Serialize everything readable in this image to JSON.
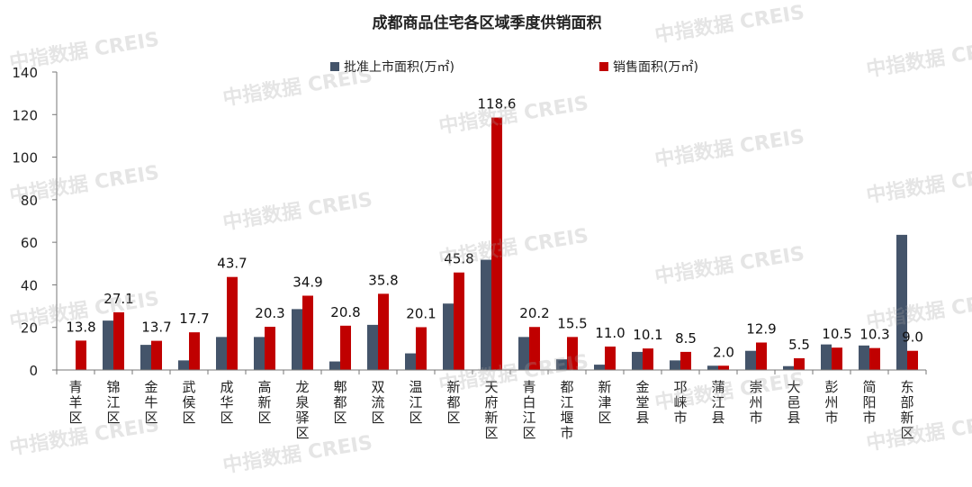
{
  "watermark": "中指数据 CREIS",
  "chart_data": {
    "type": "bar",
    "title": "成都商品住宅各区域季度供销面积",
    "xlabel": "",
    "ylabel": "",
    "ylim": [
      0,
      140
    ],
    "yticks": [
      0,
      20,
      40,
      60,
      80,
      100,
      120,
      140
    ],
    "grid": false,
    "legend_position": "top",
    "categories": [
      "青羊区",
      "锦江区",
      "金牛区",
      "武侯区",
      "成华区",
      "高新区",
      "龙泉驿区",
      "郫都区",
      "双流区",
      "温江区",
      "新都区",
      "天府新区",
      "青白江区",
      "都江堰市",
      "新津区",
      "金堂县",
      "邛崃市",
      "蒲江县",
      "崇州市",
      "大邑县",
      "彭州市",
      "简阳市",
      "东部新区"
    ],
    "series": [
      {
        "name": "批准上市面积(万㎡)",
        "color": "#44546a",
        "values": [
          0,
          23.2,
          11.8,
          4.5,
          15.5,
          15.5,
          28.6,
          4.0,
          21.2,
          7.8,
          31.2,
          51.8,
          15.5,
          5.0,
          2.5,
          8.5,
          4.5,
          2.0,
          9.0,
          1.8,
          12.0,
          11.5,
          63.5
        ]
      },
      {
        "name": "销售面积(万㎡)",
        "color": "#c00000",
        "values": [
          13.8,
          27.1,
          13.7,
          17.7,
          43.7,
          20.3,
          34.9,
          20.8,
          35.8,
          20.1,
          45.8,
          118.6,
          20.2,
          15.5,
          11.0,
          10.1,
          8.5,
          2.0,
          12.9,
          5.5,
          10.5,
          10.3,
          9.0
        ],
        "labels": [
          "13.8",
          "27.1",
          "13.7",
          "17.7",
          "43.7",
          "20.3",
          "34.9",
          "20.8",
          "35.8",
          "20.1",
          "45.8",
          "118.6",
          "20.2",
          "15.5",
          "11.0",
          "10.1",
          "8.5",
          "2.0",
          "12.9",
          "5.5",
          "10.5",
          "10.3",
          "9.0"
        ]
      }
    ]
  }
}
